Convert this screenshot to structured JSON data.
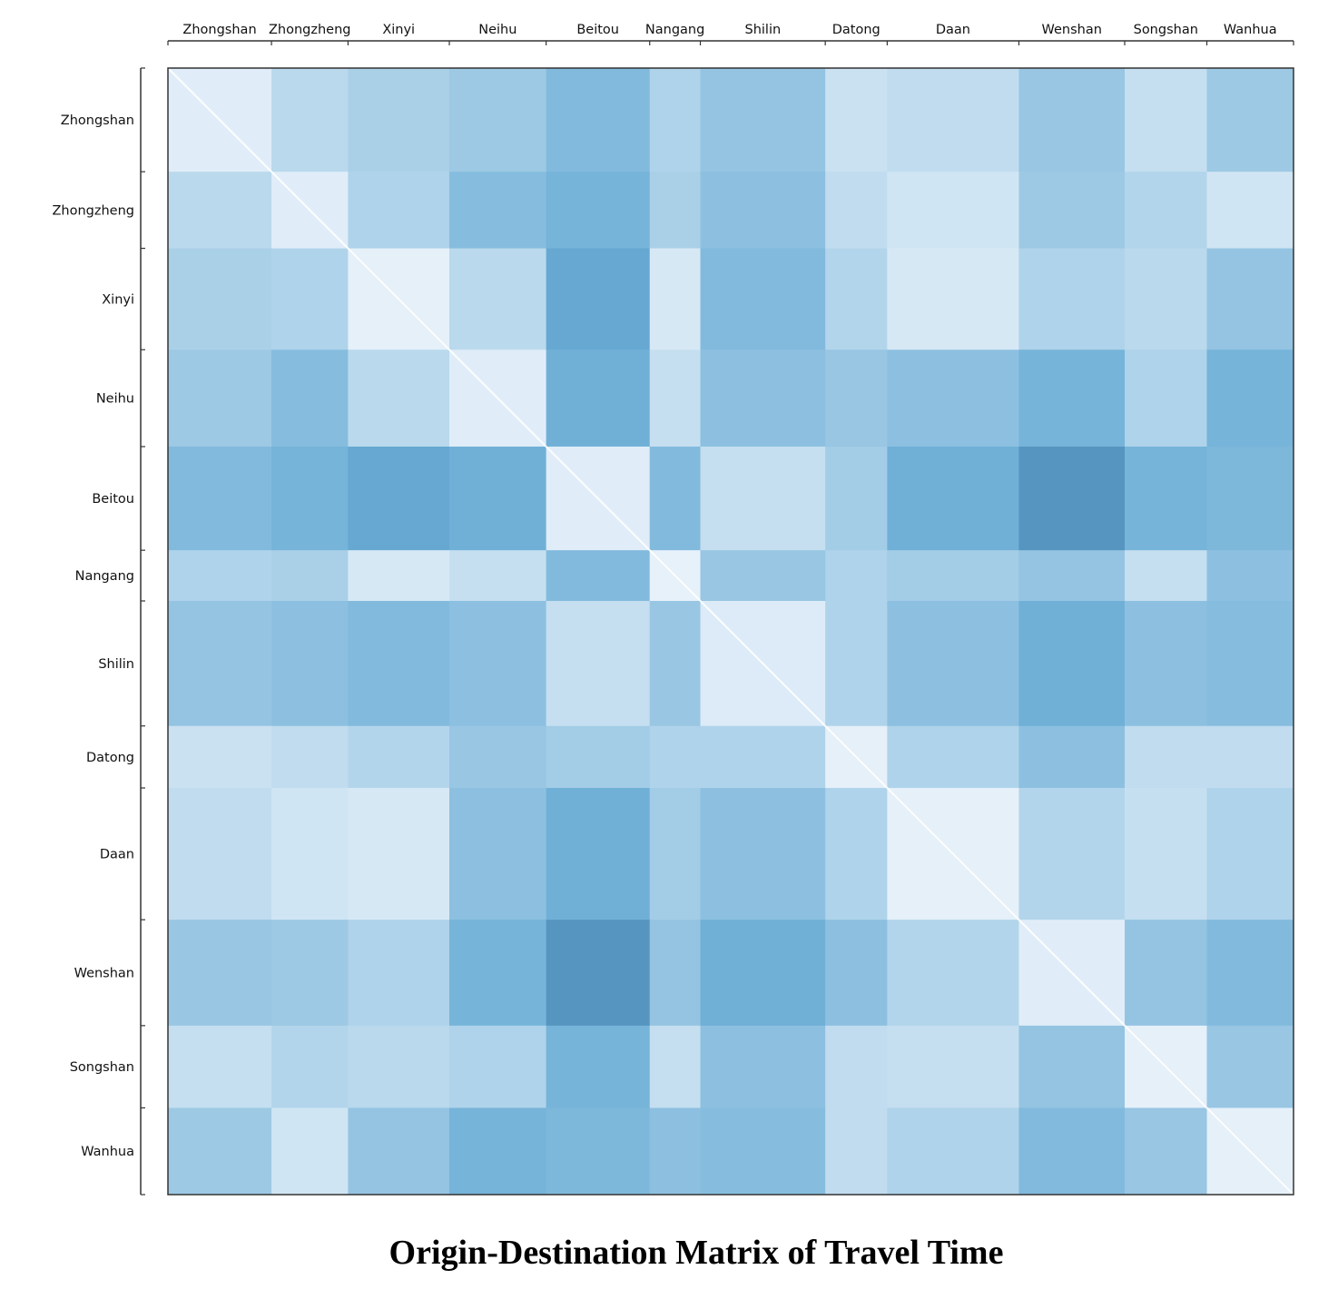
{
  "chart_data": {
    "type": "heatmap",
    "title": "Origin-Destination Matrix of Travel Time",
    "xlabel": "",
    "ylabel": "",
    "colormap": "Blues",
    "color_low": "#f2f7fd",
    "color_high": "#08306b",
    "legend": "none",
    "grid": false,
    "categories": [
      "Zhongshan",
      "Zhongzheng",
      "Xinyi",
      "Neihu",
      "Beitou",
      "Nangang",
      "Shilin",
      "Datong",
      "Daan",
      "Wenshan",
      "Songshan",
      "Wanhua"
    ],
    "relative_block_sizes": [
      0.092,
      0.068,
      0.09,
      0.086,
      0.092,
      0.045,
      0.111,
      0.055,
      0.117,
      0.094,
      0.073,
      0.077
    ],
    "block_mean_intensity": [
      [
        0.08,
        0.25,
        0.32,
        0.38,
        0.5,
        0.3,
        0.42,
        0.18,
        0.22,
        0.4,
        0.2,
        0.38
      ],
      [
        0.25,
        0.08,
        0.3,
        0.48,
        0.55,
        0.32,
        0.45,
        0.22,
        0.15,
        0.38,
        0.28,
        0.15
      ],
      [
        0.32,
        0.3,
        0.06,
        0.25,
        0.62,
        0.12,
        0.5,
        0.28,
        0.12,
        0.3,
        0.25,
        0.42
      ],
      [
        0.38,
        0.48,
        0.25,
        0.08,
        0.58,
        0.2,
        0.45,
        0.4,
        0.45,
        0.55,
        0.3,
        0.55
      ],
      [
        0.5,
        0.55,
        0.62,
        0.58,
        0.08,
        0.5,
        0.2,
        0.35,
        0.58,
        0.68,
        0.55,
        0.52
      ],
      [
        0.3,
        0.32,
        0.12,
        0.2,
        0.5,
        0.05,
        0.4,
        0.3,
        0.35,
        0.42,
        0.2,
        0.45
      ],
      [
        0.42,
        0.45,
        0.5,
        0.45,
        0.2,
        0.4,
        0.1,
        0.3,
        0.45,
        0.58,
        0.45,
        0.48
      ],
      [
        0.18,
        0.22,
        0.28,
        0.4,
        0.35,
        0.3,
        0.3,
        0.06,
        0.3,
        0.45,
        0.22,
        0.22
      ],
      [
        0.22,
        0.15,
        0.12,
        0.45,
        0.58,
        0.35,
        0.45,
        0.3,
        0.06,
        0.28,
        0.2,
        0.3
      ],
      [
        0.4,
        0.38,
        0.3,
        0.55,
        0.68,
        0.42,
        0.58,
        0.45,
        0.28,
        0.08,
        0.42,
        0.5
      ],
      [
        0.2,
        0.28,
        0.25,
        0.3,
        0.55,
        0.2,
        0.45,
        0.22,
        0.2,
        0.42,
        0.06,
        0.4
      ],
      [
        0.38,
        0.15,
        0.42,
        0.55,
        0.52,
        0.45,
        0.48,
        0.22,
        0.3,
        0.5,
        0.4,
        0.06
      ]
    ]
  }
}
